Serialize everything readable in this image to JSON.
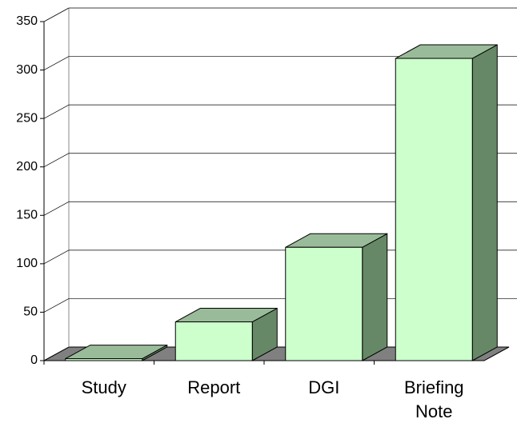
{
  "chart_data": {
    "type": "bar3d",
    "categories": [
      "Study",
      "Report",
      "DGI",
      "Briefing Note"
    ],
    "values": [
      2,
      40,
      117,
      312
    ],
    "color": "#ccffcc",
    "ylim": [
      0,
      350
    ],
    "yticks": [
      0,
      50,
      100,
      150,
      200,
      250,
      300,
      350
    ],
    "grid": true
  }
}
